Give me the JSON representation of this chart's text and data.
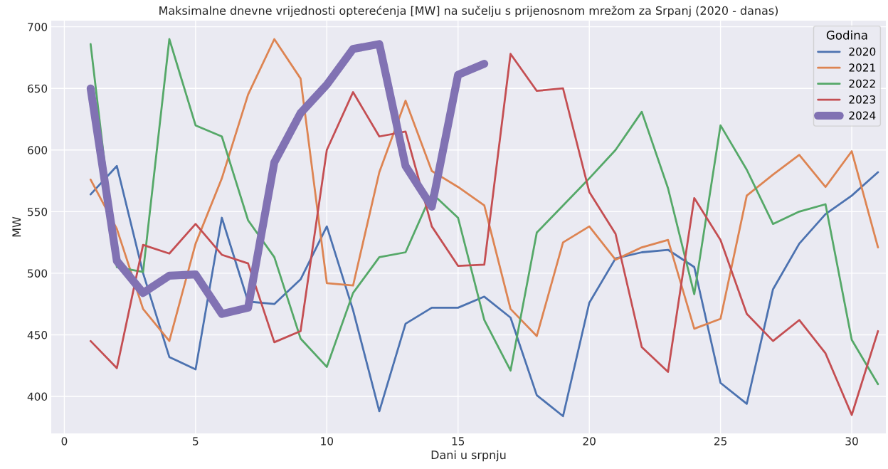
{
  "chart_data": {
    "type": "line",
    "title": "Maksimalne dnevne vrijednosti opterećenja [MW] na sučelju s prijenosnom mrežom za Srpanj (2020 - danas)",
    "xlabel": "Dani u srpnju",
    "ylabel": "MW",
    "legend_title": "Godina",
    "legend": "top right",
    "grid": true,
    "x": [
      1,
      2,
      3,
      4,
      5,
      6,
      7,
      8,
      9,
      10,
      11,
      12,
      13,
      14,
      15,
      16,
      17,
      18,
      19,
      20,
      21,
      22,
      23,
      24,
      25,
      26,
      27,
      28,
      29,
      30,
      31
    ],
    "xlim": [
      -0.5,
      31.3
    ],
    "xticks": [
      0,
      5,
      10,
      15,
      20,
      25,
      30
    ],
    "ylim": [
      370,
      705
    ],
    "yticks": [
      400,
      450,
      500,
      550,
      600,
      650,
      700
    ],
    "series": [
      {
        "name": "2020",
        "color": "#4c72b0",
        "values": [
          564,
          587,
          500,
          432,
          422,
          545,
          477,
          475,
          495,
          538,
          470,
          388,
          459,
          472,
          472,
          481,
          464,
          401,
          384,
          476,
          512,
          517,
          519,
          505,
          411,
          394,
          487,
          524,
          548,
          563,
          582
        ]
      },
      {
        "name": "2021",
        "color": "#dd8452",
        "values": [
          576,
          536,
          471,
          445,
          524,
          577,
          645,
          690,
          658,
          492,
          490,
          582,
          640,
          583,
          570,
          555,
          471,
          449,
          525,
          538,
          511,
          521,
          527,
          455,
          463,
          563,
          580,
          596,
          570,
          599,
          521
        ]
      },
      {
        "name": "2022",
        "color": "#55a868",
        "values": [
          686,
          505,
          501,
          690,
          620,
          611,
          543,
          513,
          447,
          424,
          484,
          513,
          517,
          565,
          545,
          462,
          421,
          533,
          555,
          577,
          600,
          631,
          569,
          483,
          620,
          584,
          540,
          550,
          556,
          446,
          410
        ]
      },
      {
        "name": "2023",
        "color": "#c44e52",
        "values": [
          445,
          423,
          523,
          516,
          540,
          515,
          508,
          444,
          453,
          600,
          647,
          611,
          615,
          538,
          506,
          507,
          678,
          648,
          650,
          566,
          532,
          440,
          420,
          561,
          527,
          467,
          445,
          462,
          435,
          385,
          453
        ]
      },
      {
        "name": "2024",
        "color": "#8172b3",
        "values": [
          650,
          510,
          484,
          498,
          499,
          467,
          472,
          590,
          630,
          653,
          682,
          686,
          587,
          554,
          661,
          670,
          null,
          null,
          null,
          null,
          null,
          null,
          null,
          null,
          null,
          null,
          null,
          null,
          null,
          null,
          null
        ]
      }
    ]
  }
}
